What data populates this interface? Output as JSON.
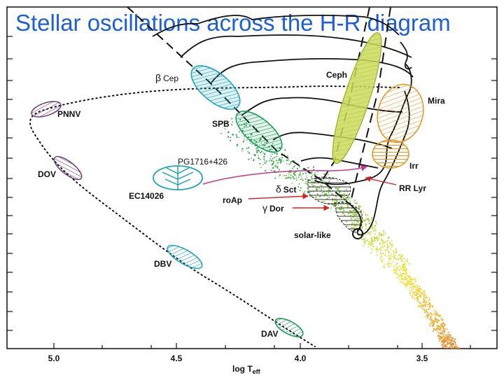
{
  "title": "Stellar oscillations across the H-R diagram",
  "axis": {
    "xlabel_main": "log T",
    "xlabel_sub": "eff",
    "x_ticks": [
      "5.0",
      "4.5",
      "4.0",
      "3.5"
    ]
  },
  "labels": {
    "beta_cep_symbol": "β",
    "beta_cep_text": "Cep",
    "ceph": "Ceph",
    "pnnv": "PNNV",
    "mira": "Mira",
    "spb": "SPB",
    "irr": "Irr",
    "pg1716": "PG1716+426",
    "dov": "DOV",
    "ec14026": "EC14026",
    "delta_sct_symbol": "δ",
    "delta_sct_text": "Sct",
    "rr_lyr": "RR Lyr",
    "roap": "roAp",
    "gamma_dor_symbol": "γ",
    "gamma_dor_text": "Dor",
    "solar_like": "solar-like",
    "dbv": "DBV",
    "dav": "DAV"
  },
  "colors": {
    "title": "#1e5fd6",
    "teal": "#1fa3b4",
    "green": "#1e9e5a",
    "purple": "#6a3d7a",
    "orange": "#e39a2b",
    "lime": "#cbdc5a",
    "arrow_red": "#d42020",
    "magenta": "#c23a8a"
  }
}
